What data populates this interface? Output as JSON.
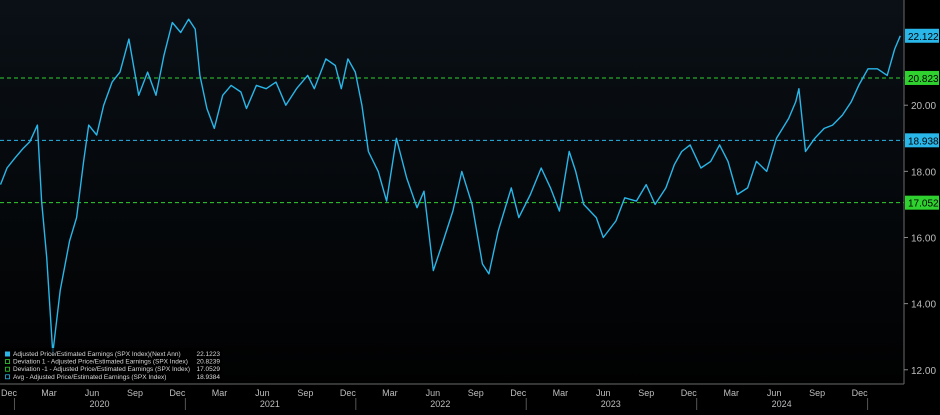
{
  "chart_data": {
    "type": "line",
    "title": "",
    "xlabel": "",
    "ylabel": "",
    "ylim": [
      11.6,
      23.0
    ],
    "yticks": [
      12,
      14,
      16,
      18,
      20
    ],
    "grid": false,
    "legend_position": "bottom-left",
    "x_month_labels": [
      "Dec",
      "Mar",
      "Jun",
      "Sep",
      "Dec",
      "Mar",
      "Jun",
      "Sep",
      "Dec",
      "Mar",
      "Jun",
      "Sep",
      "Dec",
      "Mar",
      "Jun",
      "Sep",
      "Dec",
      "Mar",
      "Jun",
      "Sep",
      "Dec"
    ],
    "x_year_labels": [
      "2020",
      "2021",
      "2022",
      "2023",
      "2024"
    ],
    "series": [
      {
        "name": "Adjusted Price/Estimated Earnings (SPX Index)(Next Ann)",
        "color": "#29b6e8",
        "last_value_label": "22.1223",
        "points": [
          [
            "2019-12-02",
            17.6
          ],
          [
            "2019-12-16",
            18.1
          ],
          [
            "2020-01-02",
            18.4
          ],
          [
            "2020-01-20",
            18.7
          ],
          [
            "2020-02-03",
            18.9
          ],
          [
            "2020-02-19",
            19.4
          ],
          [
            "2020-02-28",
            17.1
          ],
          [
            "2020-03-10",
            15.4
          ],
          [
            "2020-03-23",
            12.5
          ],
          [
            "2020-04-08",
            14.4
          ],
          [
            "2020-04-28",
            15.9
          ],
          [
            "2020-05-13",
            16.6
          ],
          [
            "2020-05-28",
            18.3
          ],
          [
            "2020-06-08",
            19.4
          ],
          [
            "2020-06-25",
            19.1
          ],
          [
            "2020-07-10",
            20.0
          ],
          [
            "2020-07-28",
            20.7
          ],
          [
            "2020-08-14",
            21.0
          ],
          [
            "2020-09-02",
            22.0
          ],
          [
            "2020-09-23",
            20.3
          ],
          [
            "2020-10-12",
            21.0
          ],
          [
            "2020-10-30",
            20.3
          ],
          [
            "2020-11-16",
            21.5
          ],
          [
            "2020-12-04",
            22.5
          ],
          [
            "2020-12-22",
            22.2
          ],
          [
            "2021-01-08",
            22.6
          ],
          [
            "2021-01-22",
            22.3
          ],
          [
            "2021-02-01",
            20.9
          ],
          [
            "2021-02-16",
            19.9
          ],
          [
            "2021-03-04",
            19.3
          ],
          [
            "2021-03-22",
            20.3
          ],
          [
            "2021-04-09",
            20.6
          ],
          [
            "2021-04-30",
            20.4
          ],
          [
            "2021-05-12",
            19.9
          ],
          [
            "2021-06-02",
            20.6
          ],
          [
            "2021-06-23",
            20.5
          ],
          [
            "2021-07-14",
            20.7
          ],
          [
            "2021-08-04",
            20.0
          ],
          [
            "2021-08-27",
            20.5
          ],
          [
            "2021-09-20",
            20.9
          ],
          [
            "2021-10-04",
            20.5
          ],
          [
            "2021-10-29",
            21.4
          ],
          [
            "2021-11-18",
            21.2
          ],
          [
            "2021-12-01",
            20.5
          ],
          [
            "2021-12-15",
            21.4
          ],
          [
            "2021-12-31",
            21.0
          ],
          [
            "2022-01-14",
            20.0
          ],
          [
            "2022-01-28",
            18.6
          ],
          [
            "2022-02-18",
            18.0
          ],
          [
            "2022-03-08",
            17.1
          ],
          [
            "2022-03-29",
            19.0
          ],
          [
            "2022-04-20",
            17.8
          ],
          [
            "2022-05-12",
            16.9
          ],
          [
            "2022-05-27",
            17.4
          ],
          [
            "2022-06-16",
            15.0
          ],
          [
            "2022-07-05",
            15.8
          ],
          [
            "2022-07-28",
            16.8
          ],
          [
            "2022-08-16",
            18.0
          ],
          [
            "2022-09-07",
            17.0
          ],
          [
            "2022-09-29",
            15.2
          ],
          [
            "2022-10-13",
            14.9
          ],
          [
            "2022-11-02",
            16.2
          ],
          [
            "2022-11-30",
            17.5
          ],
          [
            "2022-12-16",
            16.6
          ],
          [
            "2023-01-10",
            17.3
          ],
          [
            "2023-02-02",
            18.1
          ],
          [
            "2023-02-22",
            17.5
          ],
          [
            "2023-03-13",
            16.8
          ],
          [
            "2023-04-03",
            18.6
          ],
          [
            "2023-04-17",
            18.0
          ],
          [
            "2023-05-04",
            17.0
          ],
          [
            "2023-05-31",
            16.6
          ],
          [
            "2023-06-15",
            16.0
          ],
          [
            "2023-07-12",
            16.5
          ],
          [
            "2023-07-31",
            17.2
          ],
          [
            "2023-08-25",
            17.1
          ],
          [
            "2023-09-15",
            17.6
          ],
          [
            "2023-10-04",
            17.0
          ],
          [
            "2023-10-27",
            17.5
          ],
          [
            "2023-11-14",
            18.2
          ],
          [
            "2023-11-30",
            18.6
          ],
          [
            "2023-12-18",
            18.8
          ],
          [
            "2024-01-10",
            18.1
          ],
          [
            "2024-01-31",
            18.3
          ],
          [
            "2024-02-19",
            18.8
          ],
          [
            "2024-03-08",
            18.3
          ],
          [
            "2024-03-28",
            17.3
          ],
          [
            "2024-04-19",
            17.5
          ],
          [
            "2024-05-08",
            18.3
          ],
          [
            "2024-05-30",
            18.0
          ],
          [
            "2024-06-20",
            19.0
          ],
          [
            "2024-07-16",
            19.6
          ],
          [
            "2024-07-31",
            20.1
          ],
          [
            "2024-08-07",
            20.5
          ],
          [
            "2024-08-21",
            18.6
          ],
          [
            "2024-09-10",
            19.0
          ],
          [
            "2024-09-30",
            19.3
          ],
          [
            "2024-10-18",
            19.4
          ],
          [
            "2024-11-08",
            19.7
          ],
          [
            "2024-11-27",
            20.1
          ],
          [
            "2024-12-13",
            20.6
          ],
          [
            "2025-01-02",
            21.1
          ],
          [
            "2025-01-22",
            21.1
          ],
          [
            "2025-02-12",
            20.9
          ],
          [
            "2025-02-28",
            21.7
          ],
          [
            "2025-03-12",
            22.1
          ]
        ]
      }
    ],
    "reference_lines": [
      {
        "name": "Deviation 1 - Adjusted Price/Estimated Earnings (SPX Index)",
        "value": 20.8239,
        "label": "20.8239",
        "color": "#2fd12f",
        "style": "dashed"
      },
      {
        "name": "Deviation -1 - Adjusted Price/Estimated Earnings (SPX Index)",
        "value": 17.0529,
        "label": "17.0529",
        "color": "#2fd12f",
        "style": "dashed"
      },
      {
        "name": "Avg - Adjusted Price/Estimated Earnings (SPX Index)",
        "value": 18.9384,
        "label": "18.9384",
        "color": "#29b6e8",
        "style": "dashed"
      }
    ],
    "legend": {
      "entries": [
        {
          "name": "Adjusted Price/Estimated Earnings (SPX Index)(Next Ann)",
          "value": "22.1223",
          "marker": "filled",
          "color": "#29b6e8"
        },
        {
          "name": "Deviation 1 - Adjusted Price/Estimated Earnings (SPX Index)",
          "value": "20.8239",
          "marker": "outline",
          "color": "#2fd12f"
        },
        {
          "name": "Deviation -1 - Adjusted Price/Estimated Earnings (SPX Index)",
          "value": "17.0529",
          "marker": "outline",
          "color": "#2fd12f"
        },
        {
          "name": "Avg - Adjusted Price/Estimated Earnings (SPX Index)",
          "value": "18.9384",
          "marker": "outline",
          "color": "#29b6e8"
        }
      ]
    }
  }
}
